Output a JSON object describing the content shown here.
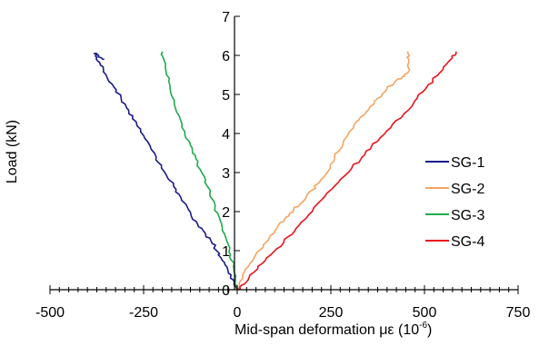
{
  "chart_data": {
    "type": "line",
    "title": "",
    "xlabel": "Mid-span deformation με (10",
    "xlabel_exponent": "-6",
    "xlabel_close": ")",
    "ylabel": "Load (kN)",
    "xlim": [
      -500,
      750
    ],
    "ylim": [
      0,
      7
    ],
    "x_ticks": [
      -500,
      -250,
      0,
      250,
      500,
      750
    ],
    "y_ticks": [
      0,
      1,
      2,
      3,
      4,
      5,
      6,
      7
    ],
    "x_tick_labels": [
      "-500",
      "-250",
      "0",
      "250",
      "500",
      "750"
    ],
    "y_tick_labels": [
      "0",
      "1",
      "2",
      "3",
      "4",
      "5",
      "6",
      "7"
    ],
    "grid": false,
    "legend_position": "right",
    "series": [
      {
        "name": "SG-1",
        "color": "#1a1a8c",
        "x": [
          0,
          -10,
          -25,
          -40,
          -55,
          -70,
          -90,
          -110,
          -130,
          -150,
          -170,
          -190,
          -210,
          -230,
          -250,
          -270,
          -290,
          -310,
          -330,
          -350,
          -365,
          -375,
          -380,
          -370,
          -355
        ],
        "y": [
          0,
          0.25,
          0.5,
          0.75,
          1.0,
          1.25,
          1.5,
          1.75,
          2.05,
          2.35,
          2.65,
          2.95,
          3.25,
          3.6,
          3.95,
          4.3,
          4.6,
          4.9,
          5.2,
          5.5,
          5.75,
          5.95,
          6.05,
          6.0,
          5.9
        ]
      },
      {
        "name": "SG-2",
        "color": "#f4a460",
        "x": [
          0,
          15,
          30,
          50,
          70,
          90,
          110,
          130,
          150,
          175,
          200,
          220,
          240,
          260,
          280,
          300,
          325,
          350,
          375,
          400,
          420,
          440,
          455,
          458,
          455
        ],
        "y": [
          0,
          0.3,
          0.6,
          0.9,
          1.15,
          1.4,
          1.65,
          1.85,
          2.05,
          2.25,
          2.55,
          2.75,
          3.0,
          3.4,
          3.65,
          4.05,
          4.35,
          4.6,
          4.9,
          5.15,
          5.3,
          5.45,
          5.55,
          5.9,
          6.1
        ]
      },
      {
        "name": "SG-3",
        "color": "#1faa4a",
        "x": [
          0,
          -5,
          -10,
          -18,
          -28,
          -40,
          -52,
          -65,
          -80,
          -95,
          -110,
          -125,
          -140,
          -155,
          -168,
          -180,
          -190,
          -198,
          -200
        ],
        "y": [
          0,
          0.3,
          0.6,
          0.9,
          1.25,
          1.6,
          1.95,
          2.3,
          2.65,
          3.0,
          3.35,
          3.7,
          4.05,
          4.45,
          4.85,
          5.25,
          5.6,
          5.95,
          6.1
        ]
      },
      {
        "name": "SG-4",
        "color": "#e8141b",
        "x": [
          0,
          20,
          45,
          75,
          105,
          135,
          165,
          200,
          235,
          270,
          305,
          340,
          375,
          410,
          445,
          480,
          510,
          540,
          565,
          585
        ],
        "y": [
          0,
          0.15,
          0.45,
          0.75,
          1.05,
          1.35,
          1.65,
          2.0,
          2.4,
          2.75,
          3.1,
          3.45,
          3.8,
          4.15,
          4.5,
          4.9,
          5.25,
          5.55,
          5.85,
          6.1
        ]
      }
    ]
  }
}
